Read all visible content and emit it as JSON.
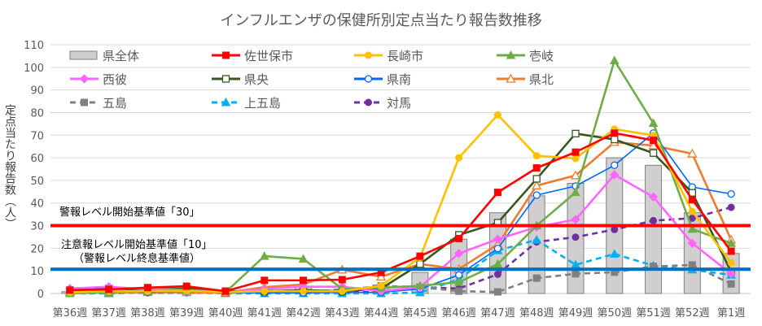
{
  "chart_data": {
    "type": "line",
    "title": "インフルエンザの保健所別定点当たり報告数推移",
    "xlabel": "",
    "ylabel": "定点当たり報告数（人）",
    "ylim": [
      0,
      110
    ],
    "yticks": [
      0,
      10,
      20,
      30,
      40,
      50,
      60,
      70,
      80,
      90,
      100,
      110
    ],
    "grid": true,
    "legend_position": "top-left",
    "categories": [
      "第36週",
      "第37週",
      "第38週",
      "第39週",
      "第40週",
      "第41週",
      "第42週",
      "第43週",
      "第44週",
      "第45週",
      "第46週",
      "第47週",
      "第48週",
      "第49週",
      "第50週",
      "第51週",
      "第52週",
      "第1週"
    ],
    "series": [
      {
        "name": "県全体",
        "kind": "bar",
        "color": "#d0cece",
        "edge": "#808080",
        "values": [
          0.8,
          1.2,
          1.4,
          1.6,
          0.7,
          1.5,
          2.8,
          2.0,
          3.8,
          9.3,
          24.0,
          35.7,
          43.2,
          48.7,
          60.0,
          56.7,
          35.7,
          17.7
        ]
      },
      {
        "name": "佐世保市",
        "kind": "line",
        "color": "#ff0000",
        "marker": "square",
        "marker_fill": "filled",
        "dashed": false,
        "values": [
          1.5,
          1.8,
          2.6,
          3.2,
          1.0,
          5.8,
          5.8,
          6.1,
          9.3,
          16.5,
          24.3,
          44.7,
          55.5,
          62.5,
          70.9,
          67.7,
          41.4,
          18.7
        ]
      },
      {
        "name": "長崎市",
        "kind": "line",
        "color": "#ffc000",
        "marker": "circle",
        "marker_fill": "filled",
        "dashed": false,
        "values": [
          0.5,
          1.0,
          1.0,
          1.2,
          0.5,
          1.0,
          1.0,
          1.0,
          3.4,
          15.9,
          60.0,
          79.0,
          60.9,
          59.7,
          72.7,
          69.9,
          36.3,
          13.6
        ]
      },
      {
        "name": "壱岐",
        "kind": "line",
        "color": "#70ad47",
        "marker": "triangle",
        "marker_fill": "filled",
        "dashed": false,
        "values": [
          0.0,
          0.5,
          1.0,
          1.5,
          0.5,
          16.5,
          15.3,
          2.0,
          2.5,
          3.4,
          5.0,
          13.0,
          30.0,
          44.7,
          103.0,
          75.3,
          28.5,
          22.2
        ]
      },
      {
        "name": "西彼",
        "kind": "line",
        "color": "#ff66ff",
        "marker": "diamond",
        "marker_fill": "filled",
        "dashed": false,
        "values": [
          2.2,
          3.0,
          1.8,
          1.6,
          0.5,
          2.0,
          3.0,
          3.0,
          1.0,
          2.8,
          17.7,
          24.0,
          29.4,
          32.7,
          52.5,
          42.7,
          22.2,
          8.7
        ]
      },
      {
        "name": "県央",
        "kind": "line",
        "color": "#375623",
        "marker": "square",
        "marker_fill": "hollow",
        "dashed": false,
        "values": [
          1.4,
          2.2,
          1.6,
          2.2,
          1.0,
          1.0,
          1.5,
          1.0,
          2.2,
          13.0,
          25.9,
          31.3,
          50.7,
          70.7,
          68.1,
          62.1,
          44.5,
          9.6
        ]
      },
      {
        "name": "県南",
        "kind": "line",
        "color": "#0066ff",
        "marker": "circle",
        "marker_fill": "hollow",
        "dashed": false,
        "values": [
          0.4,
          0.8,
          0.6,
          1.0,
          0.3,
          0.3,
          0.3,
          0.5,
          0.5,
          2.0,
          8.2,
          19.9,
          43.5,
          47.5,
          56.7,
          70.9,
          47.1,
          44.0
        ]
      },
      {
        "name": "県北",
        "kind": "line",
        "color": "#ed7d31",
        "marker": "triangle",
        "marker_fill": "hollow",
        "dashed": false,
        "values": [
          0.6,
          0.4,
          0.6,
          0.6,
          0.3,
          2.8,
          4.0,
          10.5,
          7.4,
          13.0,
          10.8,
          21.7,
          47.7,
          52.2,
          66.9,
          65.4,
          61.8,
          23.7
        ]
      },
      {
        "name": "五島",
        "kind": "line",
        "color": "#808080",
        "marker": "square",
        "marker_fill": "filled",
        "dashed": true,
        "values": [
          0.5,
          1.0,
          1.0,
          1.0,
          0.5,
          1.0,
          1.0,
          1.5,
          3.4,
          2.8,
          1.0,
          0.7,
          6.8,
          8.7,
          9.4,
          12.0,
          12.6,
          4.2
        ]
      },
      {
        "name": "上五島",
        "kind": "line",
        "color": "#00b0f0",
        "marker": "triangle",
        "marker_fill": "filled",
        "dashed": true,
        "values": [
          0.0,
          0.0,
          0.5,
          0.5,
          0.0,
          0.0,
          0.0,
          0.0,
          0.0,
          0.4,
          6.3,
          19.0,
          23.7,
          12.7,
          17.5,
          12.3,
          10.5,
          8.2
        ]
      },
      {
        "name": "対馬",
        "kind": "line",
        "color": "#7030a0",
        "marker": "circle",
        "marker_fill": "filled",
        "dashed": true,
        "values": [
          0.3,
          0.3,
          0.3,
          0.3,
          0.3,
          0.6,
          0.5,
          0.6,
          0.6,
          2.8,
          2.2,
          8.5,
          22.8,
          24.9,
          28.3,
          32.2,
          33.3,
          38.1
        ]
      }
    ],
    "reference_lines": [
      {
        "value": 30,
        "color": "#ff0000",
        "label": "警報レベル開始基準値「30」"
      },
      {
        "value": 10,
        "color": "#0070c0",
        "label": "注意報レベル開始基準値「10」",
        "sublabel": "（警報レベル終息基準値）"
      }
    ]
  }
}
